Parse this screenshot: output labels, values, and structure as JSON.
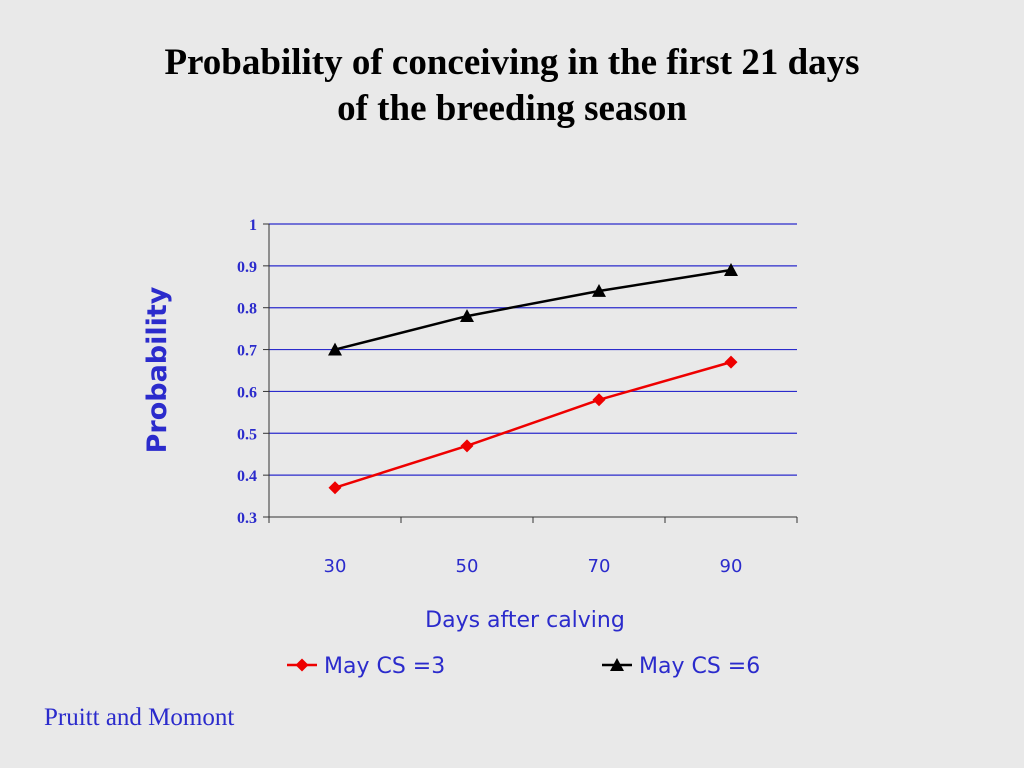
{
  "slide": {
    "title_line1": "Probability of conceiving in the first 21 days",
    "title_line2": "of the breeding season",
    "credit": "Pruitt and Momont"
  },
  "chart_data": {
    "type": "line",
    "title": "",
    "xlabel": "Days after calving",
    "ylabel": "Probability",
    "categories": [
      "30",
      "50",
      "70",
      "90"
    ],
    "x": [
      30,
      50,
      70,
      90
    ],
    "ylim": [
      0.3,
      1
    ],
    "yticks": [
      "0.3",
      "0.4",
      "0.5",
      "0.6",
      "0.7",
      "0.8",
      "0.9",
      "1"
    ],
    "grid": true,
    "legend_position": "bottom",
    "series": [
      {
        "name": "May CS =3",
        "values": [
          0.37,
          0.47,
          0.58,
          0.67
        ],
        "color": "#ee0000",
        "marker": "diamond"
      },
      {
        "name": "May CS =6",
        "values": [
          0.7,
          0.78,
          0.84,
          0.89
        ],
        "color": "#000000",
        "marker": "triangle"
      }
    ],
    "gridline_color": "#2b2bcc",
    "text_color": "#2b2bcc"
  }
}
